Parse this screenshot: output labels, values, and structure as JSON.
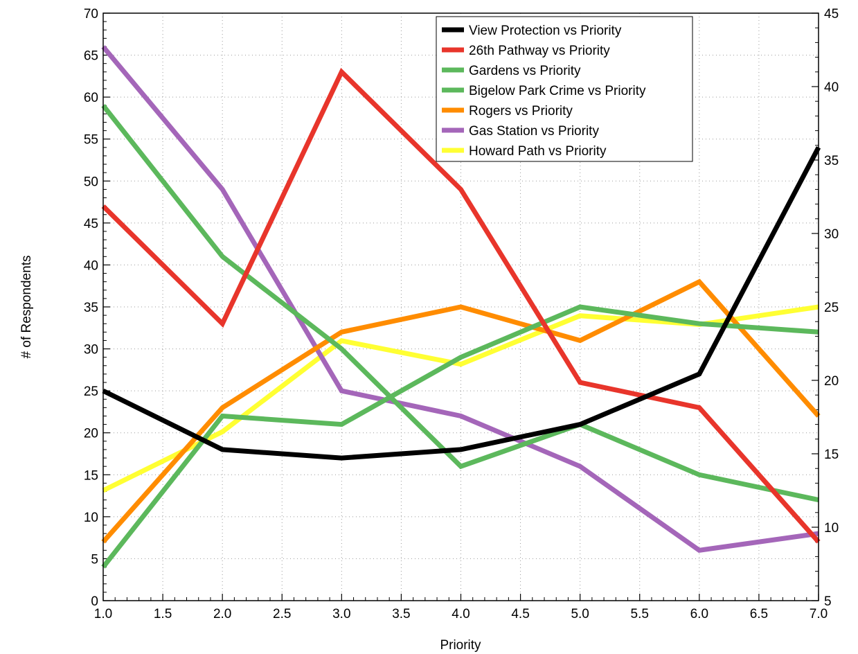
{
  "chart_data": {
    "type": "line",
    "xlabel": "Priority",
    "ylabel": "# of Respondents",
    "xlim": [
      1.0,
      7.0
    ],
    "ylim": [
      0,
      70
    ],
    "y2lim": [
      5,
      45
    ],
    "grid": "dotted",
    "legend_position": "top-right",
    "x_ticks": [
      "1.0",
      "1.5",
      "2.0",
      "2.5",
      "3.0",
      "3.5",
      "4.0",
      "4.5",
      "5.0",
      "5.5",
      "6.0",
      "6.5",
      "7.0"
    ],
    "y_ticks": [
      "0",
      "5",
      "10",
      "15",
      "20",
      "25",
      "30",
      "35",
      "40",
      "45",
      "50",
      "55",
      "60",
      "65",
      "70"
    ],
    "y2_ticks": [
      "5",
      "10",
      "15",
      "20",
      "25",
      "30",
      "35",
      "40",
      "45"
    ],
    "x": [
      1,
      2,
      3,
      4,
      5,
      6,
      7
    ],
    "series": [
      {
        "name": "View Protection vs Priority",
        "color": "#000000",
        "axis": "left",
        "values": [
          25,
          18,
          17,
          18,
          21,
          27,
          54
        ]
      },
      {
        "name": "26th Pathway vs Priority",
        "color": "#e8352b",
        "axis": "left",
        "values": [
          47,
          33,
          63,
          49,
          26,
          23,
          7
        ]
      },
      {
        "name": "Gardens vs Priority",
        "color": "#5cb85c",
        "axis": "left",
        "values": [
          59,
          41,
          30,
          16,
          21,
          15,
          12
        ]
      },
      {
        "name": "Bigelow Park Crime vs Priority",
        "color": "#5cb85c",
        "axis": "left",
        "values": [
          4,
          22,
          21,
          29,
          35,
          33,
          32
        ]
      },
      {
        "name": "Rogers vs Priority",
        "color": "#ff8c00",
        "axis": "left",
        "values": [
          7,
          23,
          32,
          35,
          31,
          38,
          22
        ]
      },
      {
        "name": "Gas Station vs Priority",
        "color": "#a466b9",
        "axis": "left",
        "values": [
          66,
          49,
          25,
          22,
          16,
          6,
          8
        ]
      },
      {
        "name": "Howard Path vs Priority",
        "color": "#ffff33",
        "axis": "right",
        "values": [
          12.5,
          16.5,
          22.7,
          21.1,
          24.4,
          23.8,
          25.0
        ]
      }
    ]
  }
}
